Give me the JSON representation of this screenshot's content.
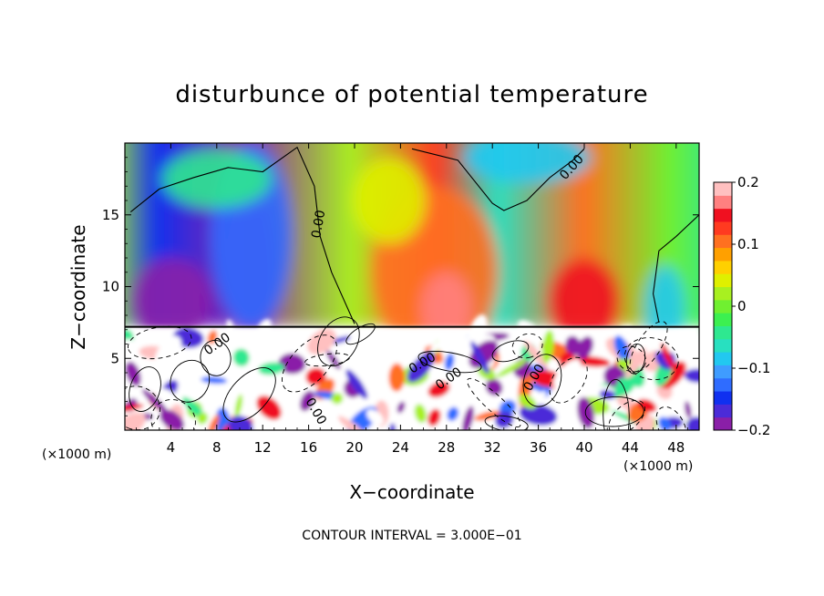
{
  "chart_data": {
    "type": "heatmap",
    "title": "disturbunce of potential temperature",
    "xlabel": "X−coordinate",
    "ylabel": "Z−coordinate",
    "x_unit_left": "(×1000 m)",
    "x_unit_right": "(×1000 m)",
    "footer": "CONTOUR INTERVAL = 3.000E−01",
    "xlim": [
      0,
      50
    ],
    "ylim": [
      0,
      20
    ],
    "x_ticks": [
      4,
      8,
      12,
      16,
      20,
      24,
      28,
      32,
      36,
      40,
      44,
      48
    ],
    "y_ticks": [
      5,
      10,
      15
    ],
    "grid": false,
    "colorbar": {
      "min": -0.2,
      "max": 0.2,
      "tick_values": [
        0.2,
        0.1,
        0,
        -0.1,
        -0.2
      ],
      "tick_labels": [
        "0.2",
        "0.1",
        "0",
        "−0.1",
        "−0.2"
      ],
      "colors": [
        "#8a1fa8",
        "#4b2bd8",
        "#1030f0",
        "#2f6cff",
        "#3f9cff",
        "#22c8f0",
        "#28e0c0",
        "#2ee890",
        "#3cf050",
        "#70f030",
        "#a8f020",
        "#dff000",
        "#ffd000",
        "#ffa000",
        "#ff7020",
        "#ff3a20",
        "#f01020",
        "#ff8080",
        "#ffc0c0"
      ]
    },
    "contour_labels": [
      "0.00",
      "0.00",
      "0.00",
      "0.00",
      "0.00",
      "0.00",
      "0.00"
    ],
    "field_mean_upper": [
      {
        "x": 0,
        "value": 0.02
      },
      {
        "x": 4,
        "value": -0.15
      },
      {
        "x": 11,
        "value": -0.18
      },
      {
        "x": 20,
        "value": 0.02
      },
      {
        "x": 27,
        "value": 0.12
      },
      {
        "x": 32,
        "value": -0.06
      },
      {
        "x": 39,
        "value": 0.1
      },
      {
        "x": 46,
        "value": 0.0
      },
      {
        "x": 50,
        "value": -0.05
      }
    ],
    "zero_contour_upper": [
      {
        "x": 0.5,
        "z": 15.2
      },
      {
        "x": 3,
        "z": 16.8
      },
      {
        "x": 6,
        "z": 17.6
      },
      {
        "x": 9,
        "z": 18.3
      },
      {
        "x": 12,
        "z": 18.0
      },
      {
        "x": 15,
        "z": 19.7
      },
      {
        "x": 16.5,
        "z": 17.0
      },
      {
        "x": 17,
        "z": 13.5
      },
      {
        "x": 18,
        "z": 11.0
      },
      {
        "x": 20,
        "z": 7.4
      }
    ]
  }
}
